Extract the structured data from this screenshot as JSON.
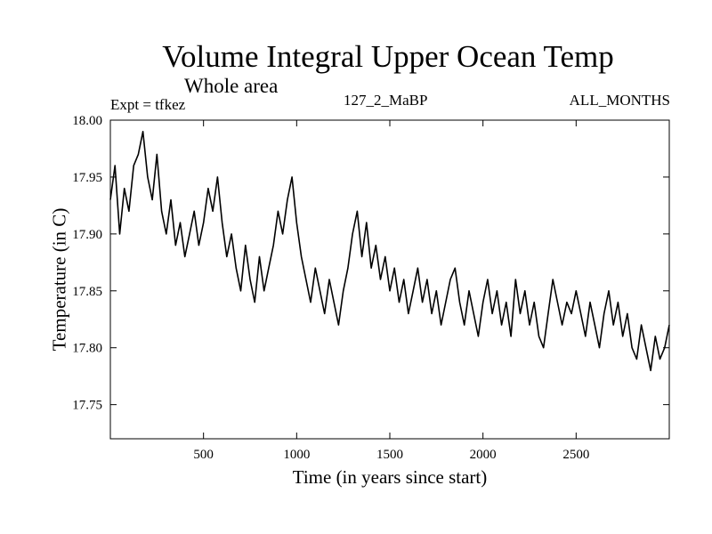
{
  "header": {
    "title": "Volume Integral Upper Ocean Temp",
    "subtitle": "Whole area",
    "expt": "Expt = tfkez",
    "run": "127_2_MaBP",
    "months": "ALL_MONTHS"
  },
  "chart_data": {
    "type": "line",
    "title": "Volume Integral Upper Ocean Temp",
    "subtitle": "Whole area",
    "xlabel": "Time (in years since start)",
    "ylabel": "Temperature (in C)",
    "xlim": [
      0,
      3000
    ],
    "ylim": [
      17.72,
      18.0
    ],
    "x_ticks": [
      500,
      1000,
      1500,
      2000,
      2500
    ],
    "y_ticks": [
      17.75,
      17.8,
      17.85,
      17.9,
      17.95,
      18.0
    ],
    "x_tick_labels": [
      "500",
      "1000",
      "1500",
      "2000",
      "2500"
    ],
    "y_tick_labels": [
      "17.75",
      "17.80",
      "17.85",
      "17.90",
      "17.95",
      "18.00"
    ],
    "grid": false,
    "line_color": "#000000",
    "series": [
      {
        "x": [
          0,
          25,
          50,
          75,
          100,
          125,
          150,
          175,
          200,
          225,
          250,
          275,
          300,
          325,
          350,
          375,
          400,
          425,
          450,
          475,
          500,
          525,
          550,
          575,
          600,
          625,
          650,
          675,
          700,
          725,
          750,
          775,
          800,
          825,
          850,
          875,
          900,
          925,
          950,
          975,
          1000,
          1025,
          1050,
          1075,
          1100,
          1125,
          1150,
          1175,
          1200,
          1225,
          1250,
          1275,
          1300,
          1325,
          1350,
          1375,
          1400,
          1425,
          1450,
          1475,
          1500,
          1525,
          1550,
          1575,
          1600,
          1625,
          1650,
          1675,
          1700,
          1725,
          1750,
          1775,
          1800,
          1825,
          1850,
          1875,
          1900,
          1925,
          1950,
          1975,
          2000,
          2025,
          2050,
          2075,
          2100,
          2125,
          2150,
          2175,
          2200,
          2225,
          2250,
          2275,
          2300,
          2325,
          2350,
          2375,
          2400,
          2425,
          2450,
          2475,
          2500,
          2525,
          2550,
          2575,
          2600,
          2625,
          2650,
          2675,
          2700,
          2725,
          2750,
          2775,
          2800,
          2825,
          2850,
          2875,
          2900,
          2925,
          2950,
          2975,
          3000
        ],
        "values": [
          17.93,
          17.96,
          17.9,
          17.94,
          17.92,
          17.96,
          17.97,
          17.99,
          17.95,
          17.93,
          17.97,
          17.92,
          17.9,
          17.93,
          17.89,
          17.91,
          17.88,
          17.9,
          17.92,
          17.89,
          17.91,
          17.94,
          17.92,
          17.95,
          17.91,
          17.88,
          17.9,
          17.87,
          17.85,
          17.89,
          17.86,
          17.84,
          17.88,
          17.85,
          17.87,
          17.89,
          17.92,
          17.9,
          17.93,
          17.95,
          17.91,
          17.88,
          17.86,
          17.84,
          17.87,
          17.85,
          17.83,
          17.86,
          17.84,
          17.82,
          17.85,
          17.87,
          17.9,
          17.92,
          17.88,
          17.91,
          17.87,
          17.89,
          17.86,
          17.88,
          17.85,
          17.87,
          17.84,
          17.86,
          17.83,
          17.85,
          17.87,
          17.84,
          17.86,
          17.83,
          17.85,
          17.82,
          17.84,
          17.86,
          17.87,
          17.84,
          17.82,
          17.85,
          17.83,
          17.81,
          17.84,
          17.86,
          17.83,
          17.85,
          17.82,
          17.84,
          17.81,
          17.86,
          17.83,
          17.85,
          17.82,
          17.84,
          17.81,
          17.8,
          17.83,
          17.86,
          17.84,
          17.82,
          17.84,
          17.83,
          17.85,
          17.83,
          17.81,
          17.84,
          17.82,
          17.8,
          17.83,
          17.85,
          17.82,
          17.84,
          17.81,
          17.83,
          17.8,
          17.79,
          17.82,
          17.8,
          17.78,
          17.81,
          17.79,
          17.8,
          17.82
        ]
      }
    ]
  }
}
